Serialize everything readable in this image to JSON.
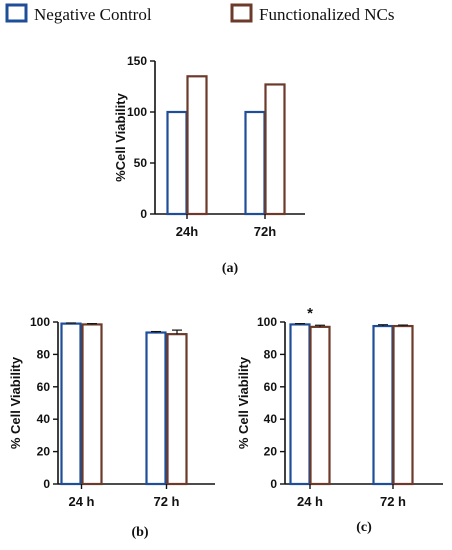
{
  "legend": {
    "items": [
      {
        "label": "Negative Control",
        "color": "#1f4e99"
      },
      {
        "label": "Functionalized NCs",
        "color": "#6b3a2a"
      }
    ]
  },
  "chart_data": [
    {
      "type": "bar",
      "panel": "(a)",
      "categories": [
        "24h",
        "72h"
      ],
      "series": [
        {
          "name": "Negative Control",
          "values": [
            100,
            100
          ],
          "errors": [
            0,
            0
          ]
        },
        {
          "name": "Functionalized NCs",
          "values": [
            135,
            127
          ],
          "errors": [
            0,
            0
          ]
        }
      ],
      "ylabel": "%Cell Viability",
      "ylim": [
        0,
        150
      ],
      "yticks": [
        0,
        50,
        100,
        150
      ],
      "annotations": []
    },
    {
      "type": "bar",
      "panel": "(b)",
      "categories": [
        "24 h",
        "72 h"
      ],
      "series": [
        {
          "name": "Negative Control",
          "values": [
            99,
            93.5
          ],
          "errors": [
            0.4,
            0.6
          ]
        },
        {
          "name": "Functionalized NCs",
          "values": [
            98.5,
            92.5
          ],
          "errors": [
            0.5,
            2.5
          ]
        }
      ],
      "ylabel": "% Cell Viability",
      "ylim": [
        0,
        100
      ],
      "yticks": [
        0,
        20,
        40,
        60,
        80,
        100
      ],
      "annotations": []
    },
    {
      "type": "bar",
      "panel": "(c)",
      "categories": [
        "24 h",
        "72 h"
      ],
      "series": [
        {
          "name": "Negative Control",
          "values": [
            98.5,
            97.5
          ],
          "errors": [
            0.5,
            0.8
          ]
        },
        {
          "name": "Functionalized NCs",
          "values": [
            97,
            97.5
          ],
          "errors": [
            1.0,
            0.6
          ]
        }
      ],
      "ylabel": "% Cell Viability",
      "ylim": [
        0,
        100
      ],
      "yticks": [
        0,
        20,
        40,
        60,
        80,
        100
      ],
      "annotations": [
        {
          "category": 0,
          "text": "*"
        }
      ]
    }
  ]
}
